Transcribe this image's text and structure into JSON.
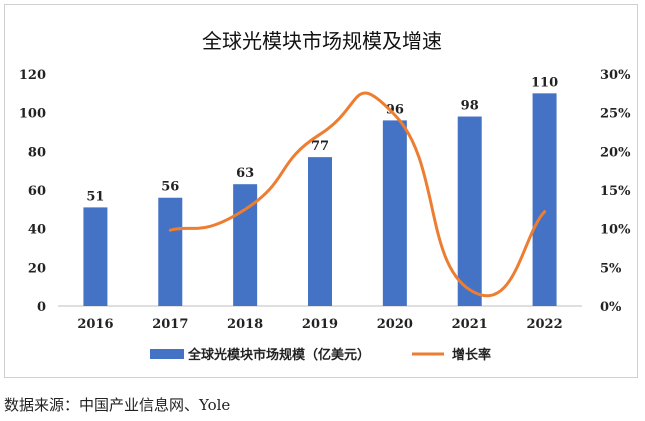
{
  "chart_data": {
    "type": "bar+line",
    "title": "全球光模块市场规模及增速",
    "categories": [
      "2016",
      "2017",
      "2018",
      "2019",
      "2020",
      "2021",
      "2022"
    ],
    "series": [
      {
        "name": "全球光模块市场规模（亿美元）",
        "type": "bar",
        "axis": "left",
        "color": "#4472C4",
        "values": [
          51,
          56,
          63,
          77,
          96,
          98,
          110
        ]
      },
      {
        "name": "增长率",
        "type": "line",
        "axis": "right",
        "color": "#ED7D31",
        "values": [
          null,
          0.098,
          0.125,
          0.222,
          0.247,
          0.021,
          0.122
        ]
      }
    ],
    "data_labels": [
      "51",
      "56",
      "63",
      "77",
      "96",
      "98",
      "110"
    ],
    "y_left": {
      "min": 0,
      "max": 120,
      "step": 20,
      "ticks": [
        "0",
        "20",
        "40",
        "60",
        "80",
        "100",
        "120"
      ]
    },
    "y_right": {
      "min": 0,
      "max": 0.3,
      "step": 0.05,
      "ticks": [
        "0%",
        "5%",
        "10%",
        "15%",
        "20%",
        "25%",
        "30%"
      ]
    },
    "grid": false,
    "legend": "bottom"
  },
  "source": "数据来源：中国产业信息网、Yole"
}
